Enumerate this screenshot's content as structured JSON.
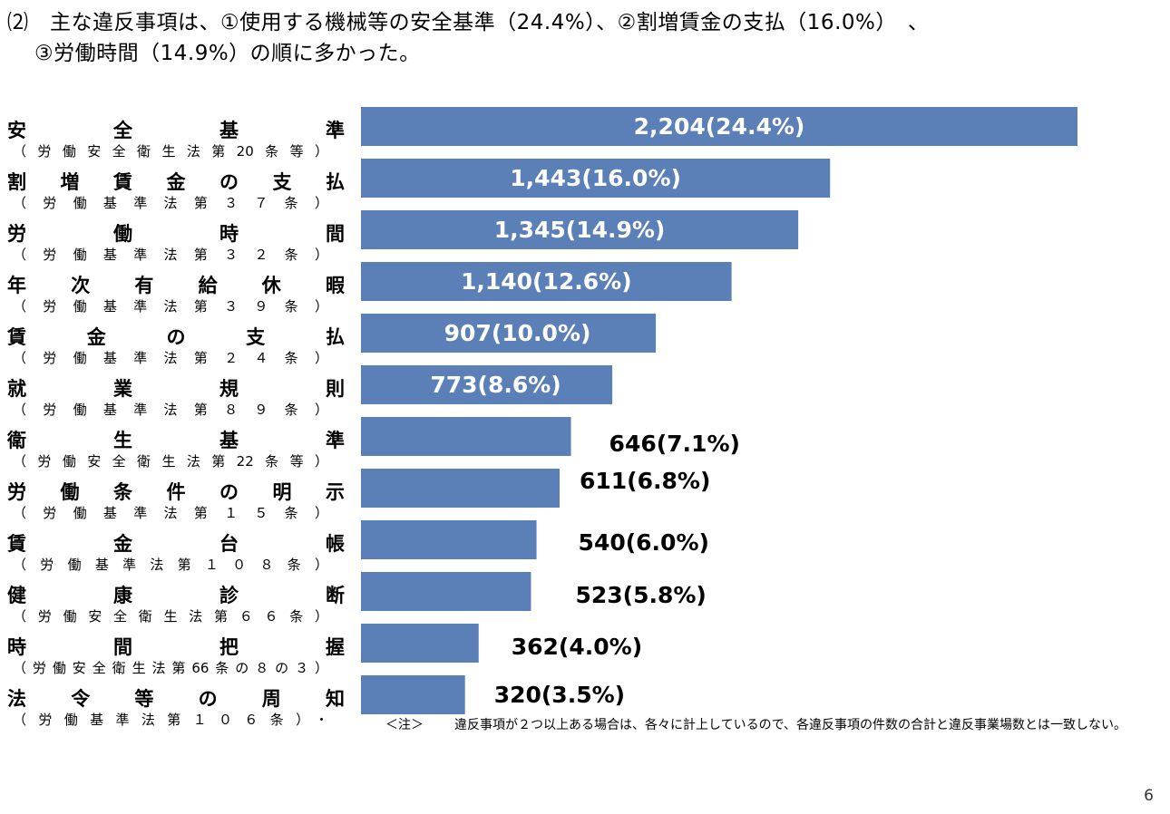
{
  "heading": {
    "line1": "⑵　主な違反事項は、①使用する機械等の安全基準（24.4%）、②割増賃金の支払（16.0%）　、",
    "line2": "③労働時間（14.9%）の順に多かった。"
  },
  "chart_data": {
    "type": "bar",
    "orientation": "horizontal",
    "categories": [
      {
        "name": "安全基準",
        "law": "（労働安全衛生法第20条等）"
      },
      {
        "name": "割増賃金の支払",
        "law": "（労働基準法第３７条）"
      },
      {
        "name": "労働時間",
        "law": "（労働基準法第３２条）"
      },
      {
        "name": "年次有給休暇",
        "law": "（労働基準法第３９条）"
      },
      {
        "name": "賃金の支払",
        "law": "（労働基準法第２４条）"
      },
      {
        "name": "就業規則",
        "law": "（労働基準法第８９条）"
      },
      {
        "name": "衛生基準",
        "law": "（労働安全衛生法第22条等）"
      },
      {
        "name": "労働条件の明示",
        "law": "（労働基準法第１５条）"
      },
      {
        "name": "賃金台帳",
        "law": "（労働基準法第１０８条）"
      },
      {
        "name": "健康診断",
        "law": "（労働安全衛生法第６６条）"
      },
      {
        "name": "時間把握",
        "law": "（労働安全衛生法第66条の８の３）"
      },
      {
        "name": "法令等の周知",
        "law": "（労働基準法第１０６条）・"
      }
    ],
    "values": [
      2204,
      1443,
      1345,
      1140,
      907,
      773,
      646,
      611,
      540,
      523,
      362,
      320
    ],
    "labels": [
      "2,204(24.4%)",
      "1,443(16.0%)",
      "1,345(14.9%)",
      "1,140(12.6%)",
      "907(10.0%)",
      "773(8.6%)",
      "646(7.1%)",
      "611(6.8%)",
      "540(6.0%)",
      "523(5.8%)",
      "362(4.0%)",
      "320(3.5%)"
    ],
    "label_inside": [
      true,
      true,
      true,
      true,
      true,
      true,
      false,
      false,
      false,
      false,
      false,
      false
    ],
    "bar_color": "#5b7fb7",
    "xlim": [
      0,
      2204
    ],
    "grid": false,
    "legend": "none"
  },
  "footnote": {
    "label": "＜注＞",
    "text": "違反事項が２つ以上ある場合は、各々に計上しているので、各違反事項の件数の合計と違反事業場数とは一致しない。"
  },
  "page_number": "6"
}
